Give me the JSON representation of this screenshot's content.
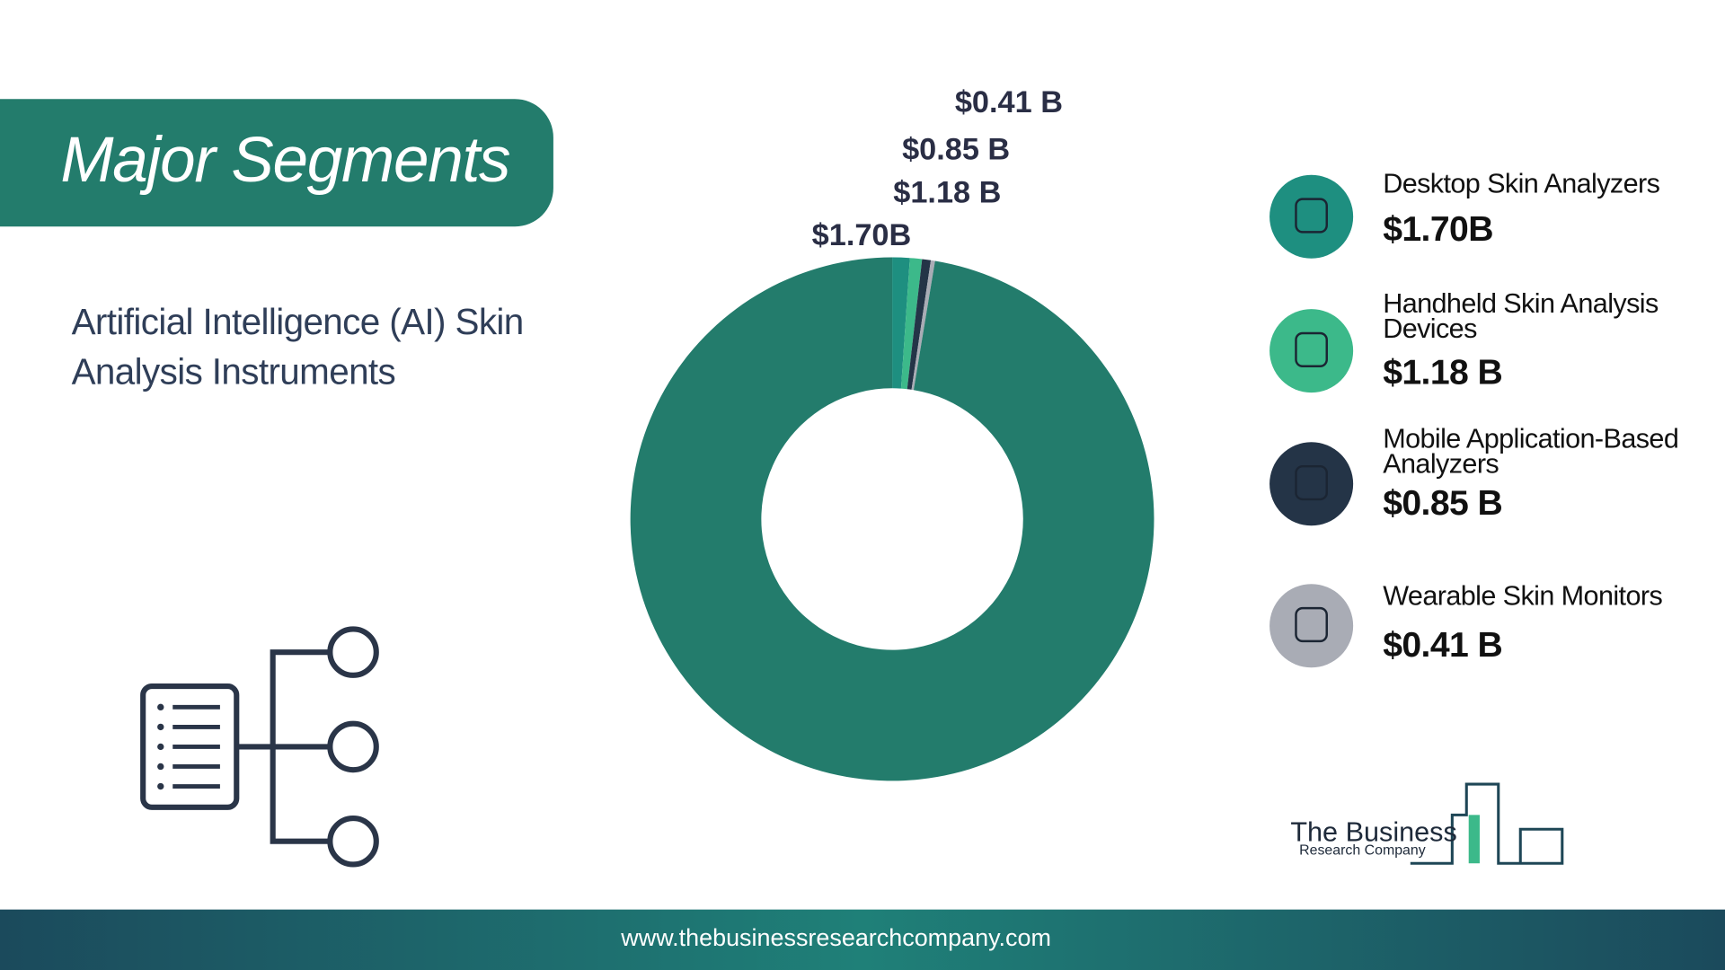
{
  "header": {
    "title": "Major Segments",
    "subtitle": "Artificial Intelligence (AI) Skin Analysis Instruments"
  },
  "chart_data": {
    "type": "donut",
    "categories": [
      "Desktop Skin Analyzers",
      "Handheld Skin Analysis Devices",
      "Mobile Application-Based Analyzers",
      "Wearable Skin Monitors",
      null
    ],
    "values": [
      1.7,
      1.18,
      0.85,
      0.41,
      154
    ],
    "value_labels": [
      "$1.70B",
      "$1.18 B",
      "$0.85 B",
      "$0.41 B",
      null
    ],
    "colors": [
      "#1e8f80",
      "#3cb98a",
      "#243447",
      "#a9acb5",
      "#237c6c"
    ]
  },
  "logo": {
    "line1": "The Business",
    "line2": "Research Company"
  },
  "footer": {
    "url": "www.thebusinessresearchcompany.com"
  }
}
